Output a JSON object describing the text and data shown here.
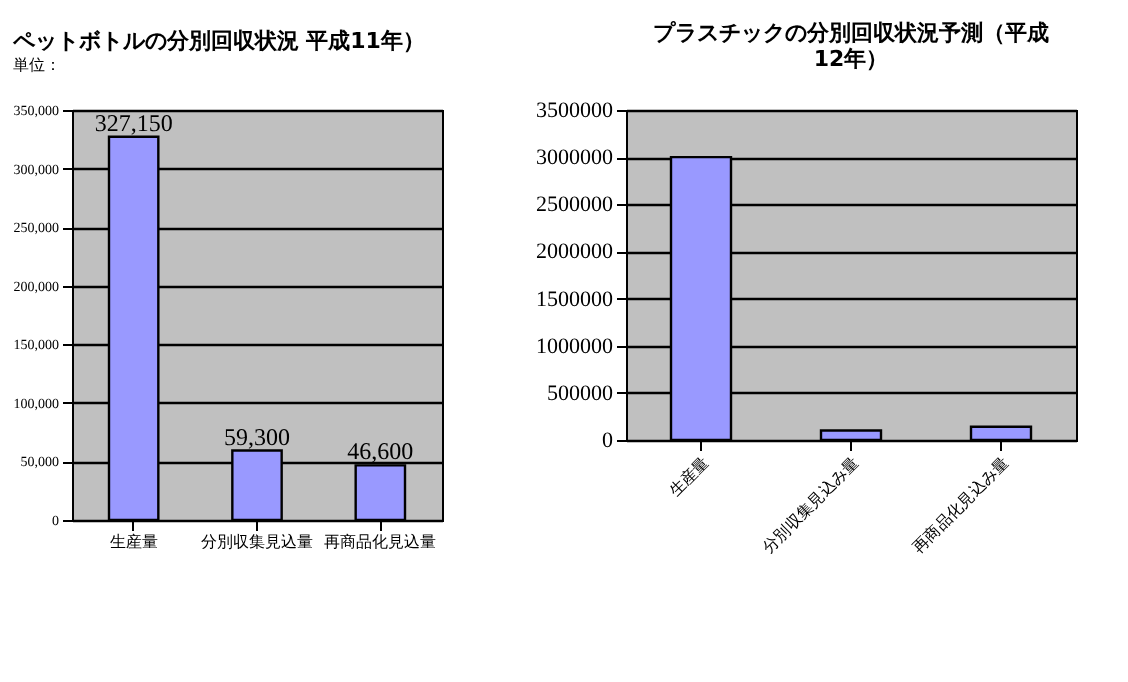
{
  "chart_data": [
    {
      "type": "bar",
      "title": "ペットボトルの分別回収状況 平成11年）",
      "annotations": [
        "単位："
      ],
      "categories": [
        "生産量",
        "分別収集見込量",
        "再商品化見込量"
      ],
      "values": [
        327150,
        59300,
        46600
      ],
      "color": "#9999ff",
      "data_labels": true,
      "value_labels": [
        "327,150",
        "59,300",
        "46,600"
      ],
      "ylim": [
        0,
        350000
      ],
      "yticks": [
        {
          "value": 0,
          "label": "0"
        },
        {
          "value": 50000,
          "label": "50,000"
        },
        {
          "value": 100000,
          "label": "100,000"
        },
        {
          "value": 150000,
          "label": "150,000"
        },
        {
          "value": 200000,
          "label": "200,000"
        },
        {
          "value": 250000,
          "label": "250,000"
        },
        {
          "value": 300000,
          "label": "300,000"
        },
        {
          "value": 350000,
          "label": "350,000"
        }
      ],
      "grid": "y"
    },
    {
      "type": "bar",
      "title": [
        "プラスチックの分別回収状況予測（平成",
        "12年）"
      ],
      "categories": [
        "生産量",
        "分別収集見込み量",
        "再商品化見込み量"
      ],
      "values": [
        3000000,
        100000,
        140000
      ],
      "color": "#9999ff",
      "ylim": [
        0,
        3500000
      ],
      "yticks": [
        0,
        500000,
        1000000,
        1500000,
        2000000,
        2500000,
        3000000,
        3500000
      ],
      "grid": "y"
    }
  ]
}
